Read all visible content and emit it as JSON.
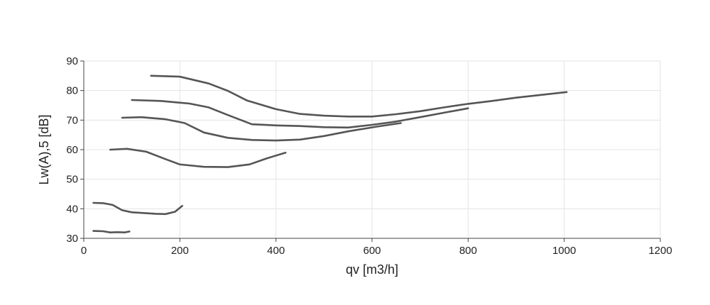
{
  "chart_data": {
    "type": "line",
    "title": "",
    "xlabel": "qv [m3/h]",
    "ylabel": "Lw(A),5 [dB]",
    "xlim": [
      0,
      1200
    ],
    "ylim": [
      30,
      90
    ],
    "xticks": [
      0,
      200,
      400,
      600,
      800,
      1000,
      1200
    ],
    "yticks": [
      30,
      40,
      50,
      60,
      70,
      80,
      90
    ],
    "grid": true,
    "line_color": "#555555",
    "series": [
      {
        "points": [
          [
            20,
            32.5
          ],
          [
            40,
            32.4
          ],
          [
            55,
            32.0
          ],
          [
            70,
            32.1
          ],
          [
            85,
            32.0
          ],
          [
            95,
            32.3
          ]
        ]
      },
      {
        "points": [
          [
            20,
            42.0
          ],
          [
            40,
            41.9
          ],
          [
            60,
            41.3
          ],
          [
            80,
            39.5
          ],
          [
            100,
            38.8
          ],
          [
            130,
            38.5
          ],
          [
            150,
            38.3
          ],
          [
            170,
            38.2
          ],
          [
            190,
            39.0
          ],
          [
            205,
            41.0
          ]
        ]
      },
      {
        "points": [
          [
            55,
            60.0
          ],
          [
            90,
            60.3
          ],
          [
            130,
            59.3
          ],
          [
            170,
            56.8
          ],
          [
            200,
            55.0
          ],
          [
            250,
            54.2
          ],
          [
            300,
            54.1
          ],
          [
            345,
            55.0
          ],
          [
            380,
            57.0
          ],
          [
            420,
            59.0
          ]
        ]
      },
      {
        "points": [
          [
            80,
            70.8
          ],
          [
            120,
            71.0
          ],
          [
            170,
            70.3
          ],
          [
            210,
            69.0
          ],
          [
            250,
            65.8
          ],
          [
            300,
            64.0
          ],
          [
            350,
            63.3
          ],
          [
            400,
            63.1
          ],
          [
            450,
            63.4
          ],
          [
            500,
            64.6
          ],
          [
            550,
            66.2
          ],
          [
            610,
            67.8
          ],
          [
            660,
            69.0
          ]
        ]
      },
      {
        "points": [
          [
            100,
            76.8
          ],
          [
            160,
            76.5
          ],
          [
            220,
            75.6
          ],
          [
            260,
            74.3
          ],
          [
            300,
            71.7
          ],
          [
            350,
            68.6
          ],
          [
            400,
            68.2
          ],
          [
            450,
            68.0
          ],
          [
            500,
            67.6
          ],
          [
            550,
            67.5
          ],
          [
            600,
            68.4
          ],
          [
            650,
            69.5
          ],
          [
            700,
            71.0
          ],
          [
            750,
            72.5
          ],
          [
            800,
            74.0
          ]
        ]
      },
      {
        "points": [
          [
            140,
            85.0
          ],
          [
            200,
            84.7
          ],
          [
            260,
            82.4
          ],
          [
            300,
            79.9
          ],
          [
            340,
            76.6
          ],
          [
            400,
            73.7
          ],
          [
            450,
            72.1
          ],
          [
            500,
            71.5
          ],
          [
            550,
            71.2
          ],
          [
            600,
            71.2
          ],
          [
            650,
            72.0
          ],
          [
            700,
            73.0
          ],
          [
            750,
            74.3
          ],
          [
            800,
            75.5
          ],
          [
            850,
            76.5
          ],
          [
            900,
            77.6
          ],
          [
            950,
            78.5
          ],
          [
            1005,
            79.5
          ]
        ]
      }
    ]
  }
}
